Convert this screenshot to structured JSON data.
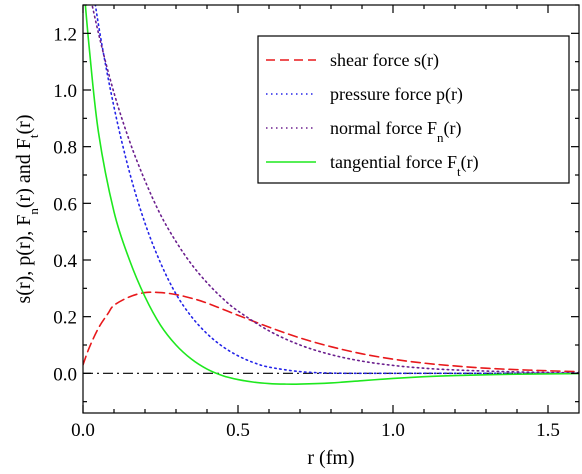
{
  "chart_data": {
    "type": "line",
    "title": "",
    "xlabel": "r (fm)",
    "ylabel": {
      "parts": [
        {
          "text": "s(r), p(r), F",
          "sub": false
        },
        {
          "text": "n",
          "sub": true
        },
        {
          "text": "(r) and F",
          "sub": false
        },
        {
          "text": "t",
          "sub": true
        },
        {
          "text": "(r)",
          "sub": false
        }
      ]
    },
    "xlim": [
      0.0,
      1.6
    ],
    "ylim": [
      -0.14,
      1.3
    ],
    "xticks": [
      0.0,
      0.5,
      1.0,
      1.5
    ],
    "xtick_labels": [
      "0.0",
      "0.5",
      "1.0",
      "1.5"
    ],
    "yticks": [
      0.0,
      0.2,
      0.4,
      0.6,
      0.8,
      1.0,
      1.2
    ],
    "ytick_labels": [
      "0.0",
      "0.2",
      "0.4",
      "0.6",
      "0.8",
      "1.0",
      "1.2"
    ],
    "grid": false,
    "legend_position": "top-right",
    "zero_line": {
      "y": 0.0,
      "style": "dash-dot",
      "color": "#000000"
    },
    "series": [
      {
        "name": "shear force s(r)",
        "name_parts": [
          {
            "text": "shear force s(r)",
            "sub": false
          }
        ],
        "color": "#e8191c",
        "dash": "dashed",
        "x": [
          0.0,
          0.02,
          0.05,
          0.08,
          0.1,
          0.15,
          0.2,
          0.25,
          0.3,
          0.35,
          0.4,
          0.5,
          0.6,
          0.7,
          0.8,
          0.9,
          1.0,
          1.1,
          1.2,
          1.3,
          1.4,
          1.5,
          1.6
        ],
        "y": [
          0.03,
          0.09,
          0.16,
          0.21,
          0.24,
          0.27,
          0.285,
          0.285,
          0.278,
          0.265,
          0.248,
          0.205,
          0.163,
          0.125,
          0.094,
          0.069,
          0.05,
          0.036,
          0.026,
          0.018,
          0.013,
          0.009,
          0.006
        ]
      },
      {
        "name": "pressure force p(r)",
        "name_parts": [
          {
            "text": "pressure force p(r)",
            "sub": false
          }
        ],
        "color": "#2424e8",
        "dash": "dotted",
        "x": [
          0.0,
          0.05,
          0.1,
          0.15,
          0.2,
          0.25,
          0.3,
          0.35,
          0.4,
          0.45,
          0.5,
          0.55,
          0.6,
          0.7,
          0.8,
          0.9,
          1.0,
          1.2,
          1.4,
          1.6
        ],
        "y": [
          1.6,
          1.23,
          0.94,
          0.71,
          0.53,
          0.39,
          0.28,
          0.2,
          0.14,
          0.095,
          0.062,
          0.038,
          0.022,
          0.006,
          0.001,
          0.0,
          0.0,
          0.0,
          0.0,
          0.0
        ]
      },
      {
        "name": "normal force Fn(r)",
        "name_parts": [
          {
            "text": "normal force  F",
            "sub": false
          },
          {
            "text": "n",
            "sub": true
          },
          {
            "text": "(r)",
            "sub": false
          }
        ],
        "color": "#6b1f8e",
        "dash": "dotted",
        "x": [
          0.0,
          0.05,
          0.1,
          0.15,
          0.2,
          0.25,
          0.3,
          0.35,
          0.4,
          0.45,
          0.5,
          0.6,
          0.7,
          0.8,
          0.9,
          1.0,
          1.1,
          1.2,
          1.3,
          1.4,
          1.5,
          1.6
        ],
        "y": [
          1.45,
          1.2,
          0.99,
          0.82,
          0.68,
          0.56,
          0.465,
          0.385,
          0.32,
          0.265,
          0.22,
          0.15,
          0.1,
          0.066,
          0.043,
          0.028,
          0.018,
          0.012,
          0.008,
          0.005,
          0.003,
          0.002
        ]
      },
      {
        "name": "tangential force Ft(r)",
        "name_parts": [
          {
            "text": "tangential force  F",
            "sub": false
          },
          {
            "text": "t",
            "sub": true
          },
          {
            "text": "(r)",
            "sub": false
          }
        ],
        "color": "#1ee81e",
        "dash": "solid",
        "x": [
          0.0,
          0.02,
          0.05,
          0.1,
          0.15,
          0.2,
          0.25,
          0.3,
          0.35,
          0.4,
          0.45,
          0.5,
          0.55,
          0.6,
          0.65,
          0.7,
          0.8,
          0.9,
          1.0,
          1.1,
          1.2,
          1.4,
          1.6
        ],
        "y": [
          1.4,
          1.15,
          0.85,
          0.57,
          0.4,
          0.27,
          0.17,
          0.1,
          0.05,
          0.015,
          -0.008,
          -0.022,
          -0.031,
          -0.036,
          -0.038,
          -0.038,
          -0.034,
          -0.026,
          -0.018,
          -0.012,
          -0.008,
          -0.003,
          -0.001
        ]
      }
    ]
  }
}
